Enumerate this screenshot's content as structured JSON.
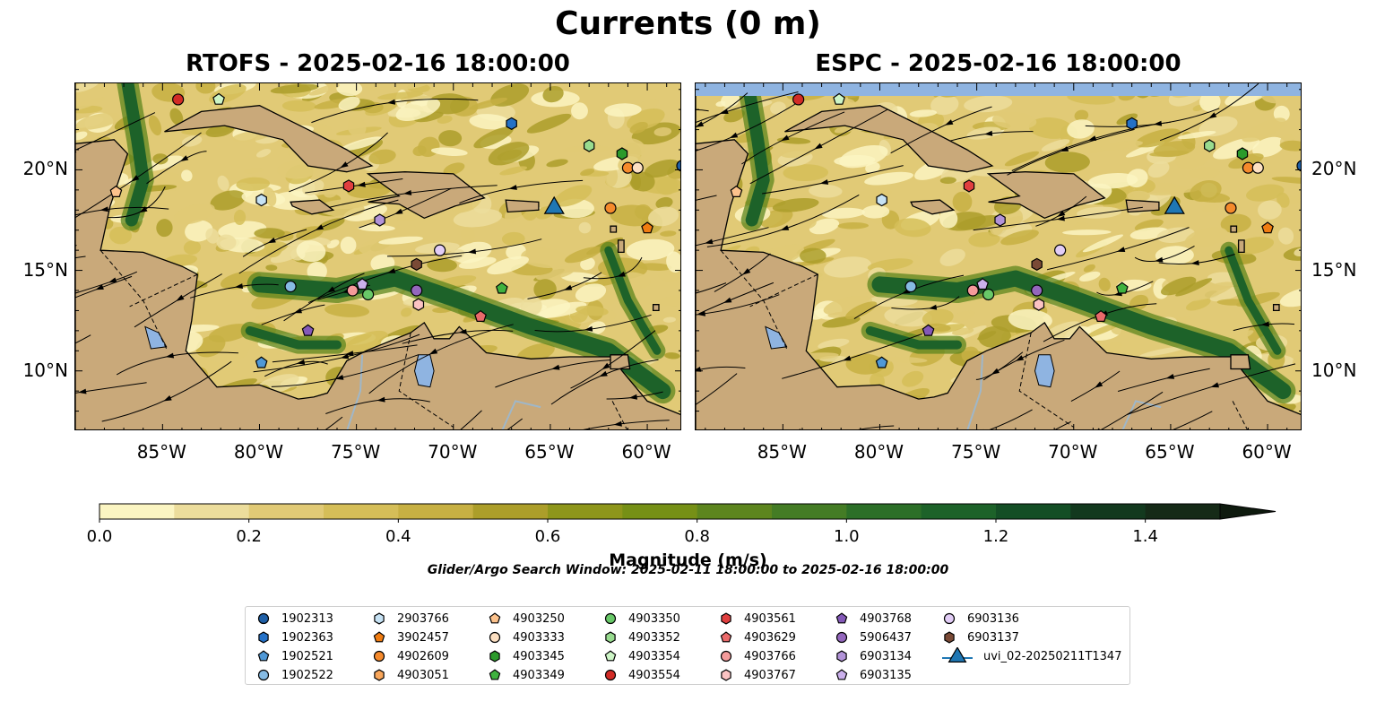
{
  "suptitle": "Currents (0 m)",
  "panels": [
    {
      "title": "RTOFS - 2025-02-16 18:00:00"
    },
    {
      "title": "ESPC - 2025-02-16 18:00:00"
    }
  ],
  "axes": {
    "x_ticks": [
      "85°W",
      "80°W",
      "75°W",
      "70°W",
      "65°W",
      "60°W"
    ],
    "y_ticks": [
      "20°N",
      "15°N",
      "10°N"
    ]
  },
  "colorbar": {
    "title": "Magnitude (m/s)",
    "tick_labels": [
      "0.0",
      "0.2",
      "0.4",
      "0.6",
      "0.8",
      "1.0",
      "1.2",
      "1.4"
    ],
    "min": 0.0,
    "max": 1.5,
    "extend": "max",
    "colors": [
      "#fbf5c2",
      "#ecdd9c",
      "#e1ca76",
      "#d5be58",
      "#c7b043",
      "#ac9e2a",
      "#8e961b",
      "#769016",
      "#5d851e",
      "#447c25",
      "#2c6f28",
      "#1d6229",
      "#144e25",
      "#13391e",
      "#152a17"
    ]
  },
  "search_window": "Glider/Argo Search Window: 2025-02-11 18:00:00 to 2025-02-16 18:00:00",
  "colors": {
    "land": "#c9a97a",
    "water_fill": "#8fb4e1",
    "river": "#9fb7c9",
    "streamline": "#000000"
  },
  "legend": [
    {
      "label": "1902313",
      "marker": "circle",
      "color": "#1f5fa6"
    },
    {
      "label": "1902363",
      "marker": "hexagon",
      "color": "#2471c7"
    },
    {
      "label": "1902521",
      "marker": "pentagon",
      "color": "#4f98d6"
    },
    {
      "label": "1902522",
      "marker": "circle",
      "color": "#86bbe4"
    },
    {
      "label": "2903766",
      "marker": "hexagon",
      "color": "#c6e2f4"
    },
    {
      "label": "3902457",
      "marker": "pentagon",
      "color": "#f07c11"
    },
    {
      "label": "4902609",
      "marker": "circle",
      "color": "#f58a2c"
    },
    {
      "label": "4903051",
      "marker": "hexagon",
      "color": "#f9a65a"
    },
    {
      "label": "4903250",
      "marker": "pentagon",
      "color": "#fcc28c"
    },
    {
      "label": "4903333",
      "marker": "circle",
      "color": "#fde0c2"
    },
    {
      "label": "4903345",
      "marker": "hexagon",
      "color": "#2b9a2b"
    },
    {
      "label": "4903349",
      "marker": "pentagon",
      "color": "#3fb23f"
    },
    {
      "label": "4903350",
      "marker": "circle",
      "color": "#68c868"
    },
    {
      "label": "4903352",
      "marker": "hexagon",
      "color": "#98db8f"
    },
    {
      "label": "4903354",
      "marker": "pentagon",
      "color": "#cdf5c6"
    },
    {
      "label": "4903554",
      "marker": "circle",
      "color": "#d22b26"
    },
    {
      "label": "4903561",
      "marker": "hexagon",
      "color": "#e03f3f"
    },
    {
      "label": "4903629",
      "marker": "pentagon",
      "color": "#ea6a6a"
    },
    {
      "label": "4903766",
      "marker": "circle",
      "color": "#f49b9b"
    },
    {
      "label": "4903767",
      "marker": "hexagon",
      "color": "#fbc3c3"
    },
    {
      "label": "4903768",
      "marker": "pentagon",
      "color": "#8459b8"
    },
    {
      "label": "5906437",
      "marker": "circle",
      "color": "#9467bd"
    },
    {
      "label": "6903134",
      "marker": "hexagon",
      "color": "#b293d8"
    },
    {
      "label": "6903135",
      "marker": "pentagon",
      "color": "#cbb0ec"
    },
    {
      "label": "6903136",
      "marker": "circle",
      "color": "#e2cdf6"
    },
    {
      "label": "6903137",
      "marker": "hexagon",
      "color": "#7a4a36"
    },
    {
      "label": "uvi_02-20250211T1347",
      "marker": "triangle",
      "color": "#1f77b4"
    }
  ],
  "map_extent": {
    "lon_min": -89.5,
    "lon_max": -58.2,
    "lat_min": 7.0,
    "lat_max": 24.3
  },
  "markers": [
    {
      "id": "4903554",
      "lon": -84.2,
      "lat": 23.5
    },
    {
      "id": "4903354",
      "lon": -82.1,
      "lat": 23.5
    },
    {
      "id": "1902363",
      "lon": -67.0,
      "lat": 22.3
    },
    {
      "id": "4903352",
      "lon": -63.0,
      "lat": 21.2
    },
    {
      "id": "4903345",
      "lon": -61.3,
      "lat": 20.8
    },
    {
      "id": "4902609",
      "lon": -61.0,
      "lat": 20.1
    },
    {
      "id": "4903333",
      "lon": -60.5,
      "lat": 20.1
    },
    {
      "id": "1902313",
      "lon": -58.2,
      "lat": 20.2
    },
    {
      "id": "4903250",
      "lon": -87.4,
      "lat": 18.9
    },
    {
      "id": "4903561",
      "lon": -75.4,
      "lat": 19.2
    },
    {
      "id": "2903766",
      "lon": -79.9,
      "lat": 18.5
    },
    {
      "id": "6903134",
      "lon": -73.8,
      "lat": 17.5
    },
    {
      "id": "4902609",
      "lon": -61.9,
      "lat": 18.1
    },
    {
      "id": "3902457",
      "lon": -60.0,
      "lat": 17.1
    },
    {
      "id": "6903136",
      "lon": -70.7,
      "lat": 16.0
    },
    {
      "id": "6903137",
      "lon": -71.9,
      "lat": 15.3
    },
    {
      "id": "1902522",
      "lon": -78.4,
      "lat": 14.2
    },
    {
      "id": "4903766",
      "lon": -75.2,
      "lat": 14.0
    },
    {
      "id": "6903135",
      "lon": -74.7,
      "lat": 14.3
    },
    {
      "id": "4903350",
      "lon": -74.4,
      "lat": 13.8
    },
    {
      "id": "5906437",
      "lon": -71.9,
      "lat": 14.0
    },
    {
      "id": "4903767",
      "lon": -71.8,
      "lat": 13.3
    },
    {
      "id": "4903349",
      "lon": -67.5,
      "lat": 14.1
    },
    {
      "id": "4903629",
      "lon": -68.6,
      "lat": 12.7
    },
    {
      "id": "4903768",
      "lon": -77.5,
      "lat": 12.0
    },
    {
      "id": "1902521",
      "lon": -79.9,
      "lat": 10.4
    }
  ],
  "glider": {
    "id": "uvi_02-20250211T1347",
    "lon": -64.8,
    "lat": 18.1
  }
}
